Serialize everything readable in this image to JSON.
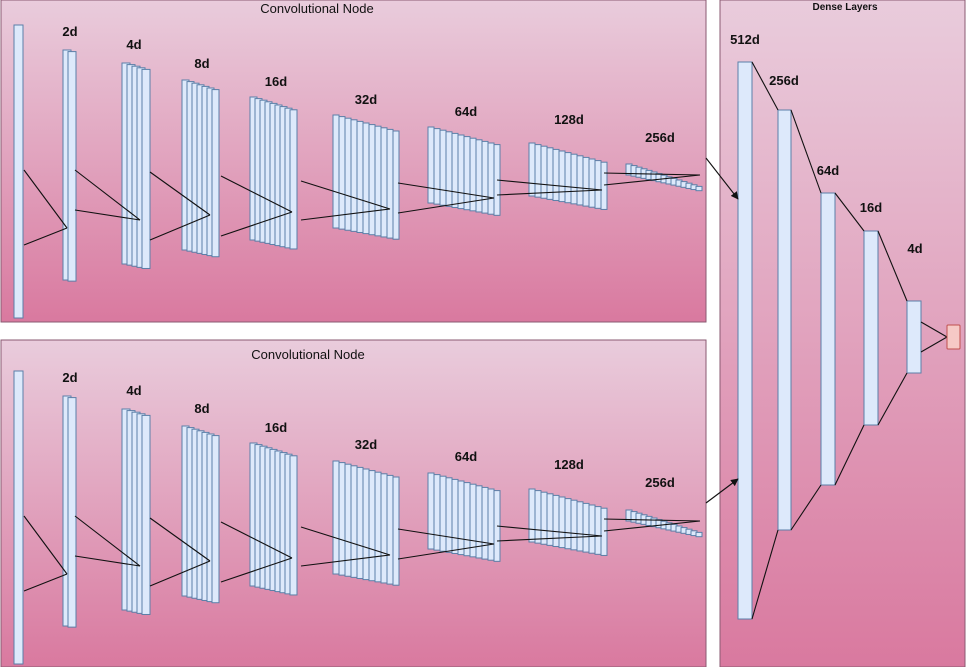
{
  "conv_nodes": [
    {
      "title": "Convolutional Node",
      "layers": [
        {
          "label": ""
        },
        {
          "label": "2d"
        },
        {
          "label": "4d"
        },
        {
          "label": "8d"
        },
        {
          "label": "16d"
        },
        {
          "label": "32d"
        },
        {
          "label": "64d"
        },
        {
          "label": "128d"
        },
        {
          "label": "256d"
        }
      ]
    },
    {
      "title": "Convolutional Node",
      "layers": [
        {
          "label": ""
        },
        {
          "label": "2d"
        },
        {
          "label": "4d"
        },
        {
          "label": "8d"
        },
        {
          "label": "16d"
        },
        {
          "label": "32d"
        },
        {
          "label": "64d"
        },
        {
          "label": "128d"
        },
        {
          "label": "256d"
        }
      ]
    }
  ],
  "dense": {
    "title": "Dense Layers",
    "layers": [
      {
        "label": "512d"
      },
      {
        "label": "256d"
      },
      {
        "label": "64d"
      },
      {
        "label": "16d"
      },
      {
        "label": "4d"
      }
    ]
  },
  "colors": {
    "panel_top": "#e9ccdc",
    "panel_bottom": "#d9799f",
    "layer_fill": "#dde9fb",
    "layer_stroke": "#5b7fa8",
    "output_fill": "#f6c9c6",
    "output_stroke": "#c0504d"
  }
}
